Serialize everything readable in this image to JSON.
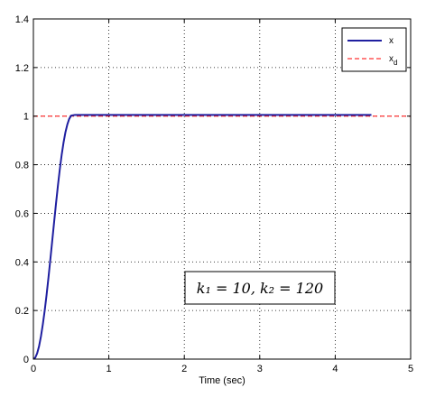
{
  "chart_data": {
    "type": "line",
    "title": "",
    "xlabel": "Time (sec)",
    "ylabel": "",
    "xlim": [
      0,
      5
    ],
    "ylim": [
      0,
      1.4
    ],
    "xticks": [
      "0",
      "1",
      "2",
      "3",
      "4",
      "5"
    ],
    "yticks": [
      "0",
      "0.2",
      "0.4",
      "0.6",
      "0.8",
      "1",
      "1.2",
      "1.4"
    ],
    "grid": true,
    "legend_position": "top-right",
    "legend": [
      "x",
      "x_d"
    ],
    "annotation": "k₁ = 10, k₂ = 120",
    "series": [
      {
        "name": "x",
        "color": "#1f1fa0",
        "style": "solid",
        "x": [
          0,
          0.025,
          0.05,
          0.075,
          0.1,
          0.125,
          0.15,
          0.175,
          0.2,
          0.225,
          0.25,
          0.275,
          0.3,
          0.325,
          0.35,
          0.375,
          0.4,
          0.425,
          0.45,
          0.475,
          0.5,
          0.55,
          1.0,
          2.0,
          3.0,
          4.0,
          4.48
        ],
        "y": [
          0,
          0.006,
          0.024,
          0.053,
          0.093,
          0.143,
          0.2,
          0.265,
          0.336,
          0.411,
          0.488,
          0.565,
          0.641,
          0.714,
          0.781,
          0.841,
          0.892,
          0.934,
          0.966,
          0.989,
          1.002,
          1.005,
          1.005,
          1.005,
          1.005,
          1.005,
          1.005
        ]
      },
      {
        "name": "x_d",
        "color": "#ff0000",
        "style": "dashed",
        "x": [
          0,
          5
        ],
        "y": [
          1,
          1
        ]
      }
    ]
  }
}
